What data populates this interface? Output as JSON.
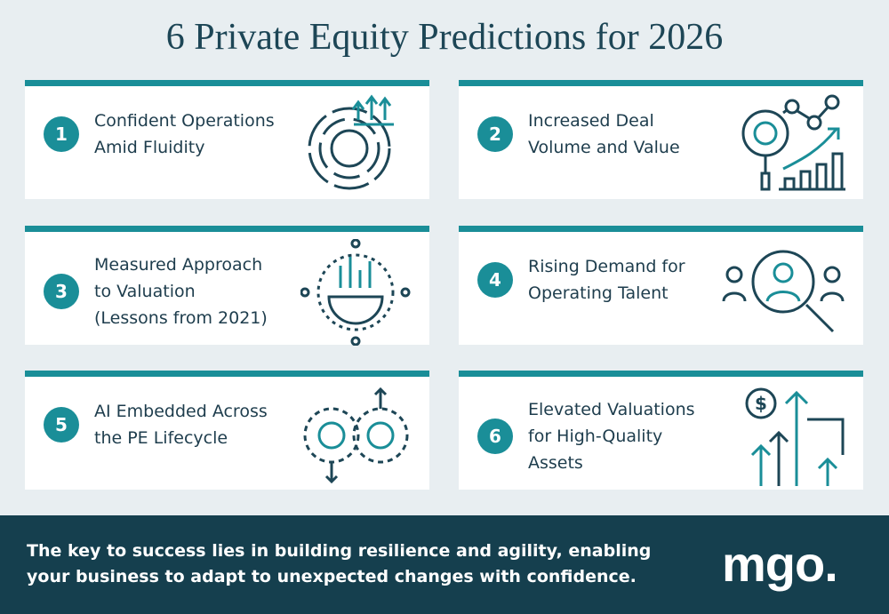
{
  "header": {
    "title": "6 Private Equity Predictions for 2026"
  },
  "cards": [
    {
      "number": "1",
      "lines": [
        "Confident Operations",
        "Amid Fluidity"
      ]
    },
    {
      "number": "2",
      "lines": [
        "Increased Deal",
        "Volume and Value"
      ]
    },
    {
      "number": "3",
      "lines": [
        "Measured Approach",
        "to Valuation",
        "(Lessons from 2021)"
      ]
    },
    {
      "number": "4",
      "lines": [
        "Rising Demand for",
        "Operating Talent"
      ]
    },
    {
      "number": "5",
      "lines": [
        "AI Embedded Across",
        "the PE Lifecycle"
      ]
    },
    {
      "number": "6",
      "lines": [
        "Elevated Valuations",
        "for High-Quality",
        "Assets"
      ]
    }
  ],
  "footer": {
    "lines": [
      "The key to success lies in building resilience and agility, enabling",
      "your business to adapt to unexpected changes with confidence."
    ],
    "logo": "mgo."
  }
}
